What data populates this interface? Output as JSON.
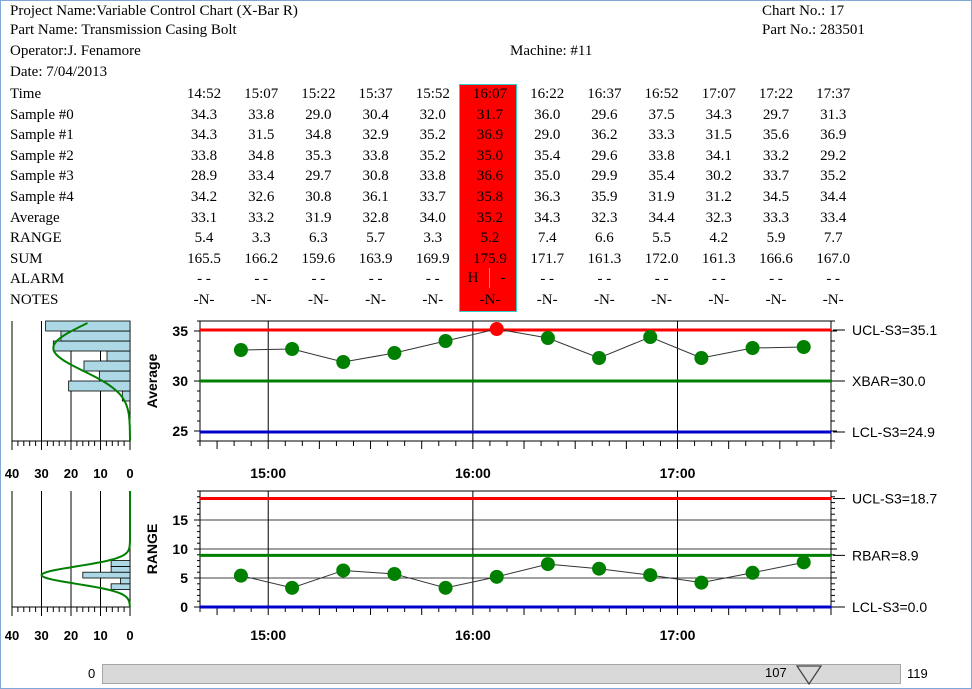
{
  "header": {
    "project": "Project Name:Variable Control Chart (X-Bar R)",
    "part_name": "Part Name: Transmission Casing Bolt",
    "operator": "Operator:J. Fenamore",
    "date": "Date: 7/04/2013",
    "machine": "Machine: #11",
    "chart_no": "Chart No.: 17",
    "part_no": "Part No.: 283501"
  },
  "table": {
    "row_labels": [
      "Time",
      "Sample #0",
      "Sample #1",
      "Sample #2",
      "Sample #3",
      "Sample #4",
      "Average",
      "RANGE",
      "SUM",
      "ALARM",
      "NOTES"
    ],
    "highlight_column": 5,
    "columns": [
      {
        "time": "14:52",
        "s0": "34.3",
        "s1": "34.3",
        "s2": "33.8",
        "s3": "28.9",
        "s4": "34.2",
        "avg": "33.1",
        "range": "5.4",
        "sum": "165.5",
        "alarm": "-   -",
        "notes": "-N-"
      },
      {
        "time": "15:07",
        "s0": "33.8",
        "s1": "31.5",
        "s2": "34.8",
        "s3": "33.4",
        "s4": "32.6",
        "avg": "33.2",
        "range": "3.3",
        "sum": "166.2",
        "alarm": "-   -",
        "notes": "-N-"
      },
      {
        "time": "15:22",
        "s0": "29.0",
        "s1": "34.8",
        "s2": "35.3",
        "s3": "29.7",
        "s4": "30.8",
        "avg": "31.9",
        "range": "6.3",
        "sum": "159.6",
        "alarm": "-   -",
        "notes": "-N-"
      },
      {
        "time": "15:37",
        "s0": "30.4",
        "s1": "32.9",
        "s2": "33.8",
        "s3": "30.8",
        "s4": "36.1",
        "avg": "32.8",
        "range": "5.7",
        "sum": "163.9",
        "alarm": "-   -",
        "notes": "-N-"
      },
      {
        "time": "15:52",
        "s0": "32.0",
        "s1": "35.2",
        "s2": "35.2",
        "s3": "33.8",
        "s4": "33.7",
        "avg": "34.0",
        "range": "3.3",
        "sum": "169.9",
        "alarm": "-   -",
        "notes": "-N-"
      },
      {
        "time": "16:07",
        "s0": "31.7",
        "s1": "36.9",
        "s2": "35.0",
        "s3": "36.6",
        "s4": "35.8",
        "avg": "35.2",
        "range": "5.2",
        "sum": "175.9",
        "alarm": "",
        "notes": "-N-"
      },
      {
        "time": "16:22",
        "s0": "36.0",
        "s1": "29.0",
        "s2": "35.4",
        "s3": "35.0",
        "s4": "36.3",
        "avg": "34.3",
        "range": "7.4",
        "sum": "171.7",
        "alarm": "-   -",
        "notes": "-N-"
      },
      {
        "time": "16:37",
        "s0": "29.6",
        "s1": "36.2",
        "s2": "29.6",
        "s3": "29.9",
        "s4": "35.9",
        "avg": "32.3",
        "range": "6.6",
        "sum": "161.3",
        "alarm": "-   -",
        "notes": "-N-"
      },
      {
        "time": "16:52",
        "s0": "37.5",
        "s1": "33.3",
        "s2": "33.8",
        "s3": "35.4",
        "s4": "31.9",
        "avg": "34.4",
        "range": "5.5",
        "sum": "172.0",
        "alarm": "-   -",
        "notes": "-N-"
      },
      {
        "time": "17:07",
        "s0": "34.3",
        "s1": "31.5",
        "s2": "34.1",
        "s3": "30.2",
        "s4": "31.2",
        "avg": "32.3",
        "range": "4.2",
        "sum": "161.3",
        "alarm": "-   -",
        "notes": "-N-"
      },
      {
        "time": "17:22",
        "s0": "29.7",
        "s1": "35.6",
        "s2": "33.2",
        "s3": "33.7",
        "s4": "34.5",
        "avg": "33.3",
        "range": "5.9",
        "sum": "166.6",
        "alarm": "-   -",
        "notes": "-N-"
      },
      {
        "time": "17:37",
        "s0": "31.3",
        "s1": "36.9",
        "s2": "29.2",
        "s3": "35.2",
        "s4": "34.4",
        "avg": "33.4",
        "range": "7.7",
        "sum": "167.0",
        "alarm": "-   -",
        "notes": "-N-"
      }
    ],
    "alarm_highlight": {
      "high": "H",
      "low": "-"
    }
  },
  "colors": {
    "ucl": "#ff0000",
    "center": "#008000",
    "lcl": "#0000cc",
    "point": "#008000",
    "alarm_point": "#ff0000",
    "highlight": "#ff0000",
    "histogram": "#add8e6"
  },
  "scrollbar": {
    "min": "0",
    "max": "119",
    "value": "107"
  },
  "chart_data": [
    {
      "type": "line",
      "ylabel": "Average",
      "ylim": [
        24,
        36
      ],
      "yticks": [
        "25",
        "30",
        "35"
      ],
      "xticks": [
        "15:00",
        "16:00",
        "17:00"
      ],
      "x": [
        "14:52",
        "15:07",
        "15:22",
        "15:37",
        "15:52",
        "16:07",
        "16:22",
        "16:37",
        "16:52",
        "17:07",
        "17:22",
        "17:37"
      ],
      "values": [
        33.1,
        33.2,
        31.9,
        32.8,
        34.0,
        35.2,
        34.3,
        32.3,
        34.4,
        32.3,
        33.3,
        33.4
      ],
      "alarm_index": 5,
      "limits": [
        {
          "label": "UCL-S3=35.1",
          "value": 35.1,
          "color": "#ff0000"
        },
        {
          "label": "XBAR=30.0",
          "value": 30.0,
          "color": "#008000"
        },
        {
          "label": "LCL-S3=24.9",
          "value": 24.9,
          "color": "#0000cc"
        }
      ],
      "histogram": {
        "xticks": [
          "40",
          "30",
          "20",
          "10",
          "0"
        ],
        "xlim": [
          0,
          40
        ]
      }
    },
    {
      "type": "line",
      "ylabel": "RANGE",
      "ylim": [
        0,
        20
      ],
      "yticks": [
        "0",
        "5",
        "10",
        "15"
      ],
      "xticks": [
        "15:00",
        "16:00",
        "17:00"
      ],
      "x": [
        "14:52",
        "15:07",
        "15:22",
        "15:37",
        "15:52",
        "16:07",
        "16:22",
        "16:37",
        "16:52",
        "17:07",
        "17:22",
        "17:37"
      ],
      "values": [
        5.4,
        3.3,
        6.3,
        5.7,
        3.3,
        5.2,
        7.4,
        6.6,
        5.5,
        4.2,
        5.9,
        7.7
      ],
      "limits": [
        {
          "label": "UCL-S3=18.7",
          "value": 18.7,
          "color": "#ff0000"
        },
        {
          "label": "RBAR=8.9",
          "value": 8.9,
          "color": "#008000"
        },
        {
          "label": "LCL-S3=0.0",
          "value": 0.0,
          "color": "#0000cc"
        }
      ],
      "histogram": {
        "xticks": [
          "40",
          "30",
          "20",
          "10",
          "0"
        ],
        "xlim": [
          0,
          40
        ]
      }
    }
  ]
}
